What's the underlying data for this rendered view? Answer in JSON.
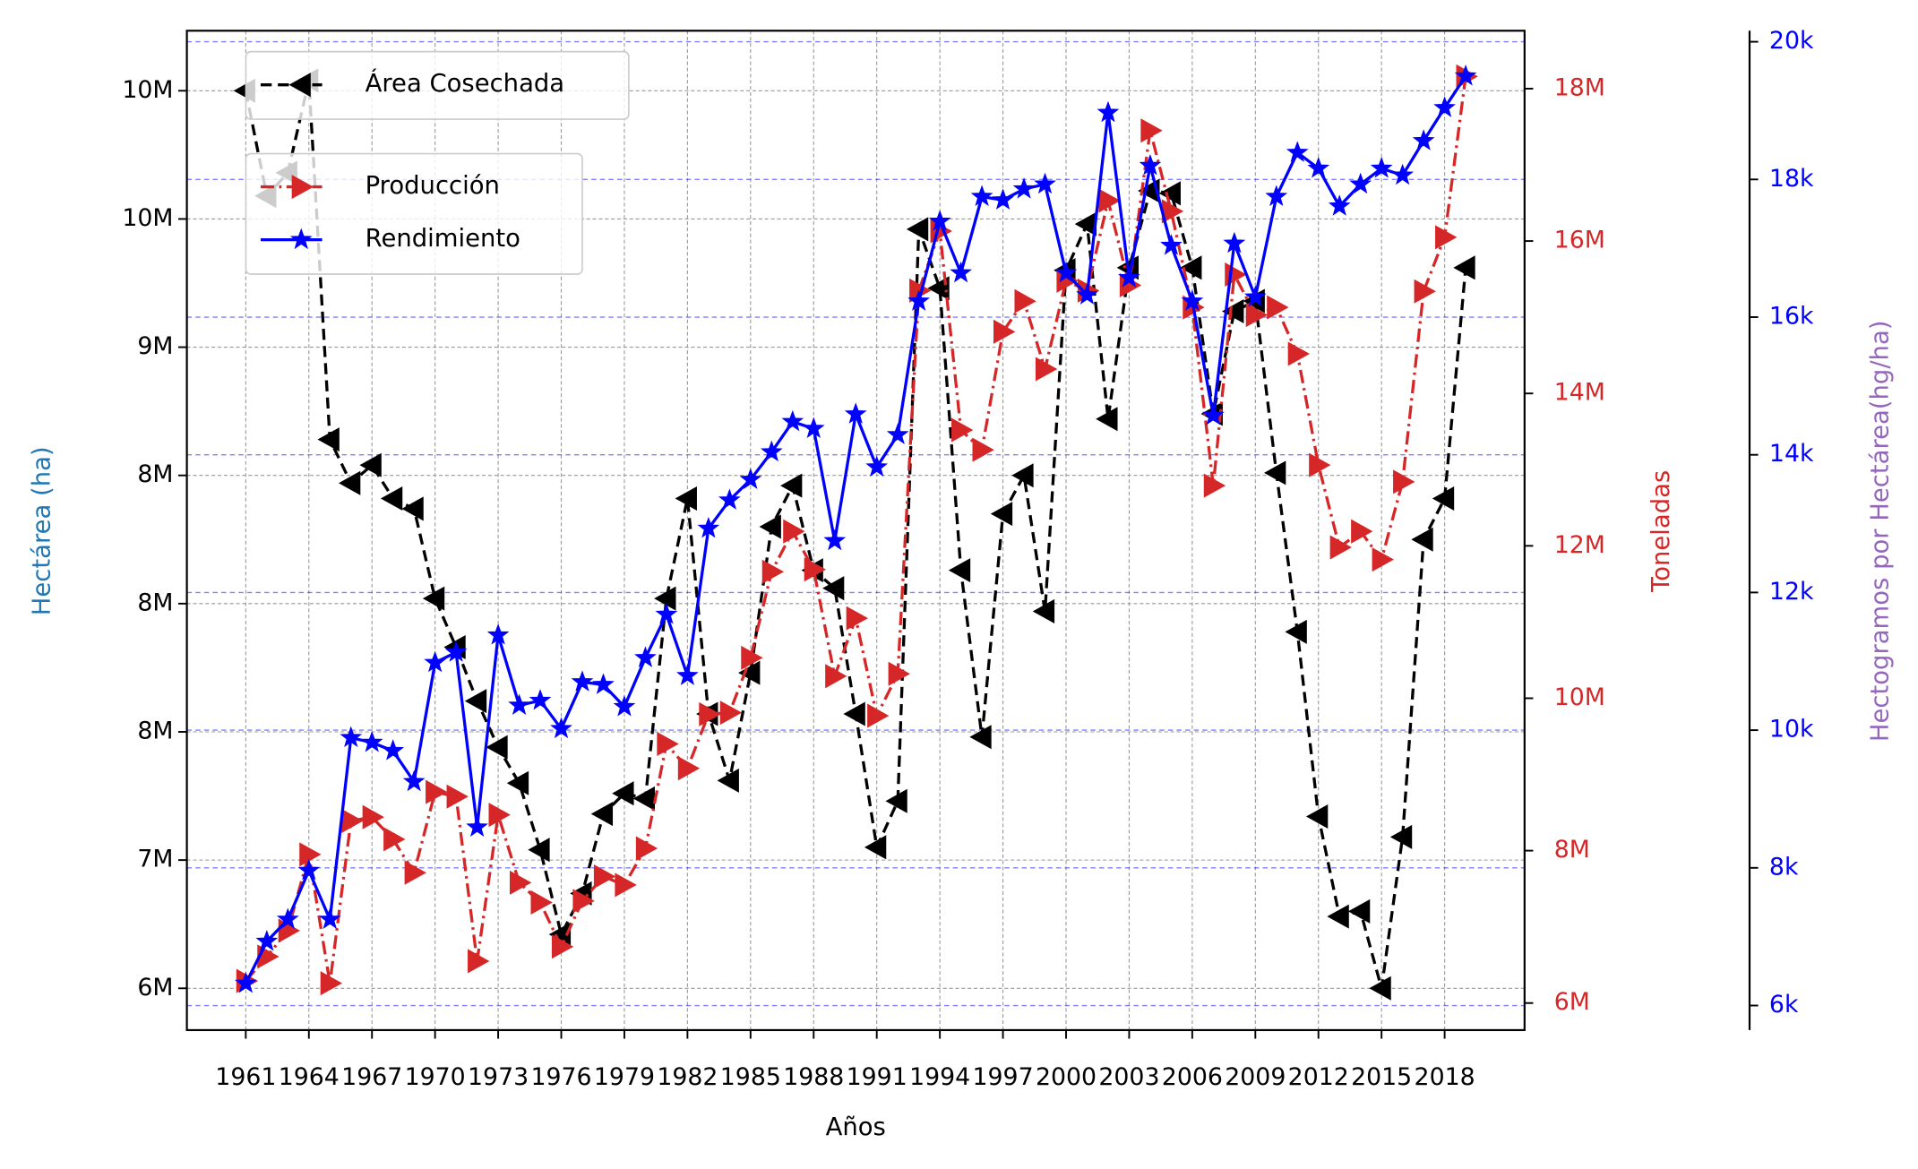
{
  "chart_data": {
    "type": "line",
    "xlabel": "Años",
    "ylabel": "Hectárea (ha)",
    "y2label": "Toneladas",
    "y3label": "Hectogramos por Hectárea(hg/ha)",
    "x": [
      1961,
      1962,
      1963,
      1964,
      1965,
      1966,
      1967,
      1968,
      1969,
      1970,
      1971,
      1972,
      1973,
      1974,
      1975,
      1976,
      1977,
      1978,
      1979,
      1980,
      1981,
      1982,
      1983,
      1984,
      1985,
      1986,
      1987,
      1988,
      1989,
      1990,
      1991,
      1992,
      1993,
      1994,
      1995,
      1996,
      1997,
      1998,
      1999,
      2000,
      2001,
      2002,
      2003,
      2004,
      2005,
      2006,
      2007,
      2008,
      2009,
      2010,
      2011,
      2012,
      2013,
      2014,
      2015,
      2016,
      2017,
      2018,
      2019
    ],
    "xlim": [
      1958.2,
      2021.8
    ],
    "xticks": [
      1961,
      1964,
      1967,
      1970,
      1973,
      1976,
      1979,
      1982,
      1985,
      1988,
      1991,
      1994,
      1997,
      2000,
      2003,
      2006,
      2009,
      2012,
      2015,
      2018
    ],
    "ylim": [
      6337000,
      10234000
    ],
    "yticks": [
      {
        "value": 6500000,
        "label": "6M"
      },
      {
        "value": 7000000,
        "label": "7M"
      },
      {
        "value": 7500000,
        "label": "8M"
      },
      {
        "value": 8000000,
        "label": "8M"
      },
      {
        "value": 8500000,
        "label": "8M"
      },
      {
        "value": 9000000,
        "label": "9M"
      },
      {
        "value": 9500000,
        "label": "10M"
      },
      {
        "value": 10000000,
        "label": "10M"
      }
    ],
    "y2lim": [
      5645000,
      18760000
    ],
    "y2ticks": [
      {
        "value": 6000000,
        "label": "6M"
      },
      {
        "value": 8000000,
        "label": "8M"
      },
      {
        "value": 10000000,
        "label": "10M"
      },
      {
        "value": 12000000,
        "label": "12M"
      },
      {
        "value": 14000000,
        "label": "14M"
      },
      {
        "value": 16000000,
        "label": "16M"
      },
      {
        "value": 18000000,
        "label": "18M"
      }
    ],
    "y3lim": [
      5643,
      20160
    ],
    "y3ticks": [
      {
        "value": 6000,
        "label": "6k"
      },
      {
        "value": 8000,
        "label": "8k"
      },
      {
        "value": 10000,
        "label": "10k"
      },
      {
        "value": 12000,
        "label": "12k"
      },
      {
        "value": 14000,
        "label": "14k"
      },
      {
        "value": 16000,
        "label": "16k"
      },
      {
        "value": 18000,
        "label": "18k"
      },
      {
        "value": 20000,
        "label": "20k"
      }
    ],
    "grid": true,
    "y3grid": true,
    "legend": "upper left",
    "series": [
      {
        "name": "Área Cosechada",
        "color": "#000000",
        "marker": "<",
        "linestyle": "--",
        "axis": "y",
        "values": [
          10000000,
          9590000,
          9680000,
          10040000,
          8640000,
          8470000,
          8540000,
          8410000,
          8370000,
          8020000,
          7830000,
          7620000,
          7440000,
          7300000,
          7040000,
          6710000,
          6870000,
          7180000,
          7260000,
          7240000,
          8020000,
          8410000,
          7570000,
          7310000,
          7730000,
          8300000,
          8460000,
          8130000,
          8060000,
          7570000,
          7050000,
          7230000,
          9460000,
          9230000,
          8130000,
          7480000,
          8350000,
          8500000,
          7970000,
          9300000,
          9480000,
          8720000,
          9310000,
          9610000,
          9600000,
          9310000,
          8740000,
          9140000,
          9180000,
          8510000,
          7890000,
          7170000,
          6780000,
          6800000,
          6500000,
          7090000,
          8250000,
          8410000,
          9310000
        ]
      },
      {
        "name": "Producción",
        "color": "#d62728",
        "marker": ">",
        "linestyle": "-.",
        "axis": "y2",
        "values": [
          6290000,
          6610000,
          6950000,
          7950000,
          6260000,
          8390000,
          8440000,
          8150000,
          7710000,
          8770000,
          8710000,
          6550000,
          8470000,
          7580000,
          7320000,
          6740000,
          7340000,
          7660000,
          7550000,
          8030000,
          9400000,
          9080000,
          9790000,
          9810000,
          10530000,
          11660000,
          12190000,
          11690000,
          10290000,
          11050000,
          9770000,
          10320000,
          15350000,
          16130000,
          13520000,
          13260000,
          14810000,
          15210000,
          14320000,
          15480000,
          15350000,
          16530000,
          15420000,
          17450000,
          16390000,
          15130000,
          12790000,
          15560000,
          15030000,
          15130000,
          14520000,
          13060000,
          11980000,
          12190000,
          11820000,
          12840000,
          15340000,
          16050000,
          18160000
        ]
      },
      {
        "name": "Rendimiento",
        "color": "#0000ff",
        "marker": "*",
        "linestyle": "-",
        "axis": "y3",
        "values": [
          6320,
          6930,
          7250,
          7960,
          7250,
          9890,
          9820,
          9700,
          9250,
          10980,
          11130,
          8590,
          11380,
          10360,
          10430,
          10020,
          10700,
          10660,
          10340,
          11050,
          11680,
          10790,
          12930,
          13340,
          13640,
          14040,
          14480,
          14380,
          12750,
          14590,
          13820,
          14290,
          16230,
          17390,
          16640,
          17750,
          17700,
          17860,
          17930,
          16640,
          16320,
          18970,
          16570,
          18200,
          17040,
          16230,
          14570,
          17070,
          16290,
          17750,
          18390,
          18160,
          17610,
          17930,
          18160,
          18060,
          18560,
          19040,
          19500
        ]
      }
    ]
  }
}
